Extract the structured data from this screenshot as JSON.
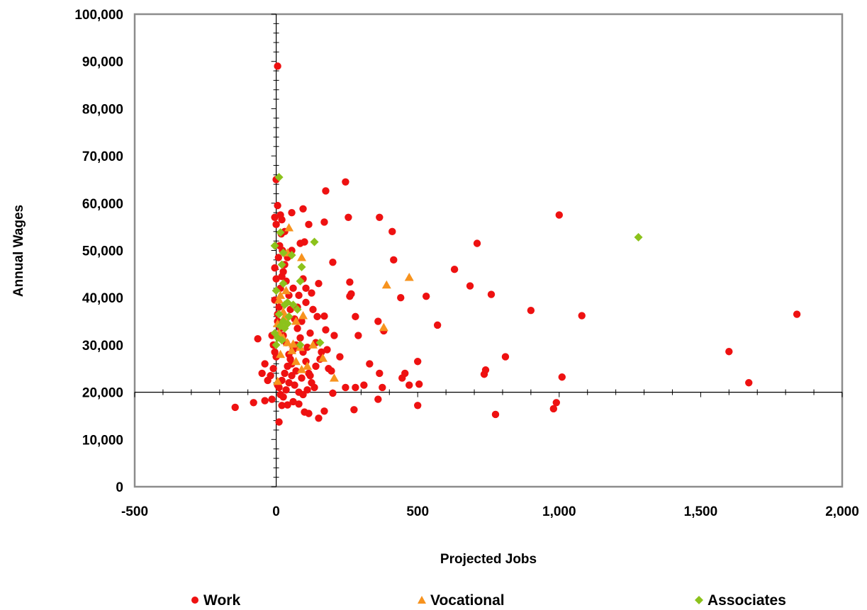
{
  "chart_data": {
    "type": "scatter",
    "title": "",
    "xlabel": "Projected Jobs",
    "ylabel": "Annual Wages",
    "xlim": [
      -500,
      2000
    ],
    "ylim": [
      0,
      100000
    ],
    "x_ticks": [
      "-500",
      "0",
      "500",
      "1,000",
      "1,500",
      "2,000"
    ],
    "y_ticks": [
      "0",
      "10,000",
      "20,000",
      "30,000",
      "40,000",
      "50,000",
      "60,000",
      "70,000",
      "80,000",
      "90,000",
      "100,000"
    ],
    "crosshair": {
      "x": 0,
      "y": 20000
    },
    "grid": false,
    "legend_position": "bottom",
    "colors": {
      "work": "#ee1111",
      "vocational": "#f7931e",
      "associates": "#8cc21c"
    },
    "series": [
      {
        "name": "Work",
        "marker": "circle",
        "points": [
          [
            5,
            89000
          ],
          [
            0,
            65000
          ],
          [
            5,
            59500
          ],
          [
            15,
            57500
          ],
          [
            -5,
            57000
          ],
          [
            0,
            55500
          ],
          [
            20,
            56500
          ],
          [
            30,
            54000
          ],
          [
            55,
            58000
          ],
          [
            95,
            58800
          ],
          [
            175,
            62600
          ],
          [
            245,
            64500
          ],
          [
            255,
            57000
          ],
          [
            365,
            57000
          ],
          [
            410,
            54000
          ],
          [
            415,
            48000
          ],
          [
            440,
            40000
          ],
          [
            530,
            40300
          ],
          [
            570,
            34200
          ],
          [
            630,
            46000
          ],
          [
            685,
            42500
          ],
          [
            710,
            51500
          ],
          [
            735,
            23800
          ],
          [
            740,
            24700
          ],
          [
            760,
            40700
          ],
          [
            810,
            27500
          ],
          [
            900,
            37300
          ],
          [
            980,
            16500
          ],
          [
            990,
            17800
          ],
          [
            1000,
            57500
          ],
          [
            1010,
            23200
          ],
          [
            1080,
            36200
          ],
          [
            1600,
            28600
          ],
          [
            1670,
            22000
          ],
          [
            1840,
            36500
          ],
          [
            170,
            56000
          ],
          [
            115,
            55500
          ],
          [
            100,
            51800
          ],
          [
            200,
            47500
          ],
          [
            260,
            43300
          ],
          [
            260,
            40300
          ],
          [
            265,
            40800
          ],
          [
            150,
            43000
          ],
          [
            145,
            36000
          ],
          [
            170,
            36100
          ],
          [
            175,
            33200
          ],
          [
            180,
            29000
          ],
          [
            185,
            25000
          ],
          [
            195,
            24500
          ],
          [
            200,
            19800
          ],
          [
            170,
            16000
          ],
          [
            150,
            14500
          ],
          [
            115,
            15500
          ],
          [
            100,
            15800
          ],
          [
            80,
            17500
          ],
          [
            60,
            18000
          ],
          [
            40,
            17300
          ],
          [
            20,
            17200
          ],
          [
            10,
            13700
          ],
          [
            -15,
            18500
          ],
          [
            -40,
            18200
          ],
          [
            -80,
            17800
          ],
          [
            -145,
            16800
          ],
          [
            -65,
            31300
          ],
          [
            -50,
            24000
          ],
          [
            -40,
            26000
          ],
          [
            -30,
            22500
          ],
          [
            -20,
            23500
          ],
          [
            -10,
            25000
          ],
          [
            0,
            27500
          ],
          [
            5,
            35000
          ],
          [
            10,
            38000
          ],
          [
            15,
            42000
          ],
          [
            20,
            44500
          ],
          [
            -5,
            46300
          ],
          [
            0,
            44000
          ],
          [
            25,
            45500
          ],
          [
            35,
            43500
          ],
          [
            45,
            40500
          ],
          [
            50,
            37500
          ],
          [
            65,
            35500
          ],
          [
            75,
            33500
          ],
          [
            85,
            31500
          ],
          [
            95,
            28500
          ],
          [
            105,
            26500
          ],
          [
            115,
            24000
          ],
          [
            125,
            22000
          ],
          [
            135,
            21000
          ],
          [
            90,
            23000
          ],
          [
            70,
            24500
          ],
          [
            55,
            26000
          ],
          [
            45,
            28000
          ],
          [
            35,
            30500
          ],
          [
            25,
            32000
          ],
          [
            15,
            33500
          ],
          [
            5,
            36500
          ],
          [
            -5,
            39500
          ],
          [
            60,
            42000
          ],
          [
            80,
            40500
          ],
          [
            105,
            39000
          ],
          [
            130,
            37500
          ],
          [
            120,
            32500
          ],
          [
            140,
            30500
          ],
          [
            160,
            28500
          ],
          [
            110,
            29500
          ],
          [
            90,
            35000
          ],
          [
            75,
            38000
          ],
          [
            40,
            48500
          ],
          [
            30,
            47000
          ],
          [
            55,
            50000
          ],
          [
            85,
            51500
          ],
          [
            105,
            42000
          ],
          [
            125,
            41000
          ],
          [
            95,
            44000
          ],
          [
            280,
            36000
          ],
          [
            290,
            32000
          ],
          [
            330,
            26000
          ],
          [
            365,
            24000
          ],
          [
            375,
            21000
          ],
          [
            360,
            18500
          ],
          [
            280,
            21000
          ],
          [
            275,
            16300
          ],
          [
            245,
            21000
          ],
          [
            225,
            27500
          ],
          [
            205,
            32000
          ],
          [
            310,
            21500
          ],
          [
            360,
            35000
          ],
          [
            380,
            33000
          ],
          [
            445,
            23000
          ],
          [
            455,
            24000
          ],
          [
            470,
            21500
          ],
          [
            500,
            26500
          ],
          [
            500,
            17200
          ],
          [
            505,
            21700
          ],
          [
            775,
            15300
          ],
          [
            10,
            21000
          ],
          [
            20,
            22500
          ],
          [
            30,
            24000
          ],
          [
            40,
            25500
          ],
          [
            50,
            27000
          ],
          [
            60,
            29000
          ],
          [
            70,
            30000
          ],
          [
            -5,
            28500
          ],
          [
            -10,
            30000
          ],
          [
            -15,
            32000
          ],
          [
            5,
            21500
          ],
          [
            15,
            19500
          ],
          [
            25,
            19000
          ],
          [
            35,
            20500
          ],
          [
            45,
            22000
          ],
          [
            55,
            23500
          ],
          [
            65,
            21500
          ],
          [
            80,
            20000
          ],
          [
            95,
            19500
          ],
          [
            110,
            20500
          ],
          [
            120,
            23500
          ],
          [
            140,
            25500
          ],
          [
            155,
            27000
          ],
          [
            8,
            48500
          ],
          [
            12,
            51000
          ],
          [
            18,
            53500
          ],
          [
            22,
            50000
          ]
        ]
      },
      {
        "name": "Vocational",
        "marker": "triangle",
        "points": [
          [
            45,
            54800
          ],
          [
            90,
            48500
          ],
          [
            470,
            44300
          ],
          [
            390,
            42700
          ],
          [
            380,
            33700
          ],
          [
            165,
            27200
          ],
          [
            205,
            23000
          ],
          [
            90,
            24800
          ],
          [
            70,
            26500
          ],
          [
            55,
            28800
          ],
          [
            40,
            30500
          ],
          [
            25,
            37000
          ],
          [
            10,
            39500
          ],
          [
            15,
            28000
          ],
          [
            25,
            31500
          ],
          [
            10,
            32500
          ],
          [
            5,
            34500
          ],
          [
            60,
            30200
          ],
          [
            85,
            29500
          ],
          [
            110,
            25500
          ],
          [
            95,
            36200
          ],
          [
            130,
            30000
          ],
          [
            5,
            22300
          ],
          [
            35,
            41500
          ],
          [
            40,
            49500
          ],
          [
            70,
            35000
          ],
          [
            15,
            40500
          ],
          [
            30,
            36000
          ]
        ]
      },
      {
        "name": "Associates",
        "marker": "diamond",
        "points": [
          [
            10,
            65500
          ],
          [
            1280,
            52800
          ],
          [
            135,
            51800
          ],
          [
            15,
            53800
          ],
          [
            -5,
            51000
          ],
          [
            25,
            49500
          ],
          [
            55,
            49000
          ],
          [
            90,
            46500
          ],
          [
            20,
            47000
          ],
          [
            85,
            43500
          ],
          [
            25,
            43000
          ],
          [
            0,
            41500
          ],
          [
            40,
            39000
          ],
          [
            75,
            37500
          ],
          [
            30,
            38500
          ],
          [
            25,
            35000
          ],
          [
            15,
            34000
          ],
          [
            40,
            34500
          ],
          [
            -5,
            32500
          ],
          [
            155,
            30500
          ],
          [
            85,
            30000
          ],
          [
            0,
            30000
          ],
          [
            5,
            31500
          ],
          [
            20,
            31000
          ],
          [
            30,
            33500
          ],
          [
            45,
            36000
          ],
          [
            60,
            38500
          ],
          [
            10,
            36500
          ]
        ]
      }
    ]
  }
}
